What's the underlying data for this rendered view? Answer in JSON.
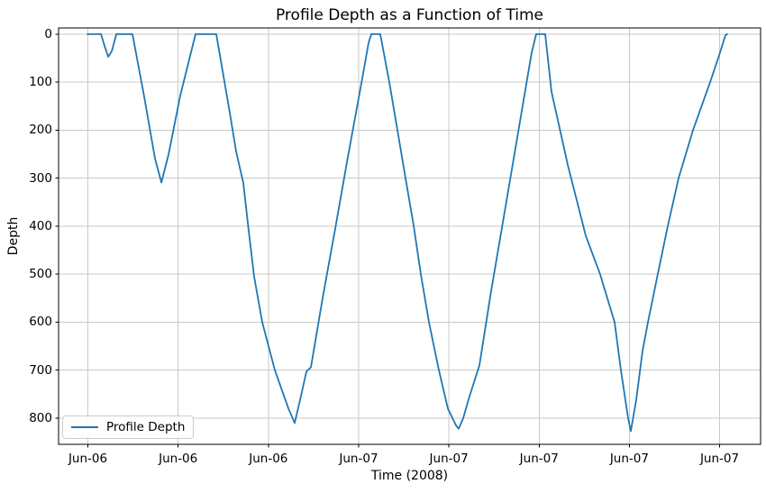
{
  "figure": {
    "title": "Profile Depth as a Function of Time",
    "x_axis_label": "Time (2008)",
    "y_axis_label": "Depth",
    "legend": {
      "position": "lower left",
      "items": [
        {
          "label": "Profile Depth",
          "color": "#1f77b4"
        }
      ]
    },
    "colors": {
      "line": "#1f77b4",
      "grid": "#c9c9c9",
      "spine": "#000000",
      "text": "#000000",
      "legend_border": "#cccccc",
      "background": "#ffffff"
    }
  },
  "chart_data": {
    "type": "line",
    "title": "Profile Depth as a Function of Time",
    "xlabel": "Time (2008)",
    "ylabel": "Depth",
    "grid": true,
    "legend_position": "lower left",
    "y_inverted": true,
    "x_unit": "x-axis tick intervals (0 = first labeled tick, ticks evenly spaced)",
    "x_ticks": [
      0,
      1,
      2,
      3,
      4,
      5,
      6,
      7
    ],
    "x_tick_labels": [
      "Jun-06",
      "Jun-06",
      "Jun-06",
      "Jun-07",
      "Jun-07",
      "Jun-07",
      "Jun-07",
      "Jun-07"
    ],
    "y_ticks": [
      0,
      100,
      200,
      300,
      400,
      500,
      600,
      700,
      800
    ],
    "x_range": [
      -0.325,
      7.454
    ],
    "y_range": [
      -13,
      854.5
    ],
    "series": [
      {
        "name": "Profile Depth",
        "color": "#1f77b4",
        "points": [
          [
            -0.005,
            0
          ],
          [
            0.145,
            0
          ],
          [
            0.185,
            25
          ],
          [
            0.225,
            47
          ],
          [
            0.265,
            35
          ],
          [
            0.315,
            0
          ],
          [
            0.494,
            0
          ],
          [
            0.624,
            130
          ],
          [
            0.744,
            260
          ],
          [
            0.814,
            309
          ],
          [
            0.894,
            250
          ],
          [
            1.023,
            128
          ],
          [
            1.193,
            0
          ],
          [
            1.423,
            0
          ],
          [
            1.573,
            165
          ],
          [
            1.642,
            244
          ],
          [
            1.722,
            310
          ],
          [
            1.782,
            410
          ],
          [
            1.842,
            505
          ],
          [
            1.932,
            600
          ],
          [
            2.072,
            700
          ],
          [
            2.222,
            780
          ],
          [
            2.291,
            810
          ],
          [
            2.351,
            762
          ],
          [
            2.421,
            703
          ],
          [
            2.471,
            694
          ],
          [
            2.601,
            550
          ],
          [
            2.741,
            405
          ],
          [
            2.881,
            255
          ],
          [
            3.021,
            112
          ],
          [
            3.11,
            18
          ],
          [
            3.14,
            0
          ],
          [
            3.24,
            0
          ],
          [
            3.34,
            100
          ],
          [
            3.43,
            200
          ],
          [
            3.52,
            300
          ],
          [
            3.61,
            400
          ],
          [
            3.689,
            500
          ],
          [
            3.779,
            600
          ],
          [
            3.889,
            700
          ],
          [
            3.989,
            780
          ],
          [
            4.079,
            815
          ],
          [
            4.109,
            822
          ],
          [
            4.159,
            800
          ],
          [
            4.228,
            755
          ],
          [
            4.338,
            690
          ],
          [
            4.468,
            535
          ],
          [
            4.618,
            370
          ],
          [
            4.788,
            182
          ],
          [
            4.918,
            38
          ],
          [
            4.968,
            0
          ],
          [
            5.067,
            0
          ],
          [
            5.137,
            120
          ],
          [
            5.317,
            272
          ],
          [
            5.517,
            420
          ],
          [
            5.676,
            500
          ],
          [
            5.836,
            600
          ],
          [
            5.906,
            700
          ],
          [
            5.986,
            800
          ],
          [
            6.016,
            827
          ],
          [
            6.076,
            762
          ],
          [
            6.146,
            660
          ],
          [
            6.206,
            600
          ],
          [
            6.315,
            500
          ],
          [
            6.425,
            400
          ],
          [
            6.545,
            300
          ],
          [
            6.705,
            200
          ],
          [
            6.895,
            100
          ],
          [
            6.995,
            44
          ],
          [
            7.065,
            2
          ],
          [
            7.085,
            0
          ]
        ]
      }
    ]
  }
}
